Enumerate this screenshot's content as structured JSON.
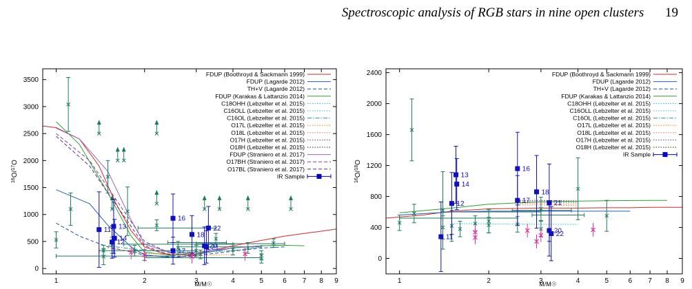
{
  "page_header": {
    "title": "Spectroscopic analysis of RGB stars in nine open clusters",
    "page_number": "19"
  },
  "legend_entries": [
    {
      "label": "FDUP (Boothroyd & Sackmann 1999)",
      "color": "#d62728",
      "dash": "solid"
    },
    {
      "label": "FDUP (Lagarde 2012)",
      "color": "#1f5fbf",
      "dash": "solid"
    },
    {
      "label": "TH+V (Lagarde 2012)",
      "color": "#1f4f9f",
      "dash": "dash"
    },
    {
      "label": "FDUP (Karakas & Lattanzio 2014)",
      "color": "#2ca02c",
      "dash": "solid"
    },
    {
      "label": "C18OHH (Lebzelter et al. 2015)",
      "color": "#17becf",
      "dash": "dot"
    },
    {
      "label": "C16OLL (Lebzelter et al. 2015)",
      "color": "#40b0c0",
      "dash": "dot"
    },
    {
      "label": "C16OL (Lebzelter et al. 2015)",
      "color": "#2a90a0",
      "dash": "dashdot"
    },
    {
      "label": "O17L (Lebzelter et al. 2015)",
      "color": "#ff7f0e",
      "dash": "dot"
    },
    {
      "label": "O18L (Lebzelter et al. 2015)",
      "color": "#e07040",
      "dash": "dot"
    },
    {
      "label": "O17H (Lebzelter et al. 2015)",
      "color": "#555555",
      "dash": "dot"
    },
    {
      "label": "O18H (Lebzelter et al. 2015)",
      "color": "#222222",
      "dash": "dot"
    },
    {
      "label": "FDUP (Straniero et al. 2017)",
      "color": "#9467bd",
      "dash": "solid"
    },
    {
      "label": "O17BH (Straniero et al. 2017)",
      "color": "#7a3fa0",
      "dash": "dash"
    },
    {
      "label": "O17BL (Straniero et al. 2017)",
      "color": "#5a2f80",
      "dash": "dash"
    },
    {
      "label": "IR Sample",
      "color": "#0000cc",
      "dash": "marker"
    }
  ],
  "chart_data": [
    {
      "type": "scatter",
      "id": "left",
      "ylabel": "16O/17O",
      "xlabel": "M/M☉",
      "xlog": true,
      "xlim": [
        0.9,
        9
      ],
      "ylim": [
        -100,
        3700
      ],
      "xticks": [
        1,
        2,
        3,
        4,
        5,
        6,
        7,
        8,
        9
      ],
      "yticks": [
        0,
        500,
        1000,
        1500,
        2000,
        2500,
        3000,
        3500
      ],
      "legend_rows": 15,
      "curves": [
        {
          "legend": 0,
          "points": [
            [
              0.9,
              2640
            ],
            [
              1.0,
              2610
            ],
            [
              1.2,
              2400
            ],
            [
              1.4,
              1900
            ],
            [
              1.6,
              1200
            ],
            [
              1.8,
              700
            ],
            [
              2.0,
              400
            ],
            [
              2.3,
              280
            ],
            [
              2.6,
              250
            ],
            [
              3.0,
              270
            ],
            [
              3.5,
              350
            ],
            [
              4.0,
              420
            ],
            [
              5.0,
              520
            ],
            [
              6.0,
              600
            ],
            [
              7.0,
              650
            ],
            [
              8.0,
              690
            ],
            [
              9.0,
              730
            ]
          ]
        },
        {
          "legend": 1,
          "points": [
            [
              1.0,
              1460
            ],
            [
              1.3,
              1200
            ],
            [
              1.5,
              800
            ],
            [
              1.8,
              400
            ],
            [
              2.0,
              250
            ],
            [
              2.5,
              200
            ],
            [
              3.0,
              260
            ],
            [
              4.0,
              380
            ],
            [
              5.0,
              420
            ],
            [
              6.0,
              430
            ]
          ]
        },
        {
          "legend": 2,
          "points": [
            [
              1.0,
              840
            ],
            [
              1.2,
              600
            ],
            [
              1.5,
              400
            ],
            [
              2.0,
              250
            ],
            [
              2.5,
              210
            ],
            [
              3.0,
              240
            ],
            [
              4.0,
              320
            ],
            [
              5.0,
              380
            ],
            [
              6.0,
              400
            ]
          ]
        },
        {
          "legend": 3,
          "points": [
            [
              1.0,
              2720
            ],
            [
              1.2,
              2300
            ],
            [
              1.5,
              1400
            ],
            [
              1.8,
              600
            ],
            [
              2.0,
              300
            ],
            [
              2.5,
              240
            ],
            [
              3.0,
              300
            ],
            [
              4.0,
              380
            ],
            [
              5.0,
              420
            ],
            [
              6.0,
              430
            ],
            [
              7.0,
              420
            ]
          ]
        },
        {
          "legend": 6,
          "points": [
            [
              1.5,
              420
            ],
            [
              2.0,
              330
            ],
            [
              3.0,
              300
            ],
            [
              4.0,
              330
            ],
            [
              5.0,
              400
            ]
          ]
        },
        {
          "legend": 7,
          "points": [
            [
              1.5,
              380
            ],
            [
              2.0,
              280
            ],
            [
              3.0,
              240
            ],
            [
              4.0,
              260
            ]
          ]
        },
        {
          "legend": 11,
          "points": [
            [
              1.0,
              2600
            ],
            [
              1.2,
              2400
            ],
            [
              1.5,
              1800
            ],
            [
              1.8,
              900
            ],
            [
              2.0,
              450
            ],
            [
              2.5,
              280
            ],
            [
              3.0,
              300
            ],
            [
              4.0,
              380
            ],
            [
              5.0,
              420
            ]
          ]
        },
        {
          "legend": 12,
          "points": [
            [
              1.0,
              2500
            ],
            [
              1.3,
              2000
            ],
            [
              1.5,
              1500
            ],
            [
              2.0,
              500
            ],
            [
              2.5,
              260
            ],
            [
              3.0,
              250
            ]
          ]
        },
        {
          "legend": 13,
          "points": [
            [
              1.0,
              2450
            ],
            [
              1.3,
              1900
            ],
            [
              1.5,
              1400
            ],
            [
              2.0,
              420
            ],
            [
              2.5,
              230
            ],
            [
              3.0,
              220
            ]
          ]
        }
      ],
      "ir_sample": [
        {
          "label": "11",
          "x": 1.4,
          "y": 720,
          "err": 700
        },
        {
          "label": "12",
          "x": 1.55,
          "y": 490,
          "err": 300
        },
        {
          "label": "13",
          "x": 1.57,
          "y": 780,
          "err": 500
        },
        {
          "label": "14",
          "x": 1.58,
          "y": 560,
          "err": 350
        },
        {
          "label": "16",
          "x": 2.5,
          "y": 930,
          "err": 450
        },
        {
          "label": "17",
          "x": 2.5,
          "y": 330,
          "err": 250
        },
        {
          "label": "18",
          "x": 2.9,
          "y": 630,
          "err": 350
        },
        {
          "label": "20",
          "x": 3.2,
          "y": 420,
          "err": 350
        },
        {
          "label": "21",
          "x": 3.25,
          "y": 400,
          "err": 300
        },
        {
          "label": "22",
          "x": 3.3,
          "y": 750,
          "err": 400
        }
      ],
      "green_points": [
        {
          "x": 1.0,
          "y": 530,
          "err": 150
        },
        {
          "x": 1.1,
          "y": 3040,
          "err": 500
        },
        {
          "x": 1.12,
          "y": 1100,
          "err": 300
        },
        {
          "x": 1.45,
          "y": 220,
          "err": 150
        },
        {
          "x": 1.45,
          "y": 330,
          "err": 100
        },
        {
          "x": 1.5,
          "y": 1700,
          "err": 300
        },
        {
          "x": 1.55,
          "y": 430,
          "err": 150
        },
        {
          "x": 1.75,
          "y": 1060,
          "err": 450
        },
        {
          "x": 1.85,
          "y": 330,
          "err": 100
        },
        {
          "x": 2.0,
          "y": 250,
          "err": 100
        },
        {
          "x": 2.2,
          "y": 800,
          "err": 100
        },
        {
          "x": 2.6,
          "y": 380,
          "err": 120
        },
        {
          "x": 3.0,
          "y": 330,
          "err": 100
        },
        {
          "x": 3.1,
          "y": 260,
          "err": 80
        },
        {
          "x": 3.5,
          "y": 550,
          "err": 100
        },
        {
          "x": 4.0,
          "y": 350,
          "err": 100
        },
        {
          "x": 4.5,
          "y": 380,
          "err": 100
        },
        {
          "x": 5.0,
          "y": 250,
          "err": 80
        },
        {
          "x": 5.0,
          "y": 180,
          "err": 80
        },
        {
          "x": 5.5,
          "y": 470,
          "err": 80
        }
      ],
      "arrows": [
        [
          1.4,
          2500
        ],
        [
          1.62,
          2000
        ],
        [
          1.7,
          2000
        ],
        [
          2.2,
          1200
        ],
        [
          2.2,
          2500
        ],
        [
          3.2,
          1100
        ],
        [
          3.6,
          1100
        ],
        [
          4.5,
          1100
        ],
        [
          6.3,
          1100
        ],
        [
          1.55,
          1100
        ]
      ],
      "magenta_points": [
        {
          "x": 1.8,
          "y": 300
        },
        {
          "x": 2.0,
          "y": 250
        },
        {
          "x": 2.9,
          "y": 220
        },
        {
          "x": 4.4,
          "y": 270
        }
      ],
      "hbars": [
        {
          "x1": 1.0,
          "x2": 2.5,
          "y": 230
        },
        {
          "x1": 1.4,
          "x2": 3.0,
          "y": 330
        },
        {
          "x1": 1.7,
          "x2": 4.0,
          "y": 450
        },
        {
          "x1": 2.4,
          "x2": 3.8,
          "y": 480
        },
        {
          "x1": 2.6,
          "x2": 5.0,
          "y": 400
        },
        {
          "x1": 1.9,
          "x2": 3.5,
          "y": 750
        },
        {
          "x1": 2.0,
          "x2": 5.0,
          "y": 200
        },
        {
          "x1": 3.0,
          "x2": 6.0,
          "y": 460
        }
      ]
    },
    {
      "type": "scatter",
      "id": "right",
      "ylabel": "16O/18O",
      "xlabel": "M/M☉",
      "xlog": true,
      "xlim": [
        0.9,
        9
      ],
      "ylim": [
        -200,
        2450
      ],
      "xticks": [
        1,
        2,
        3,
        4,
        5,
        6,
        7,
        8,
        9
      ],
      "yticks": [
        0,
        400,
        800,
        1200,
        1600,
        2000,
        2400
      ],
      "legend_rows": 12,
      "curves": [
        {
          "legend": 0,
          "points": [
            [
              0.9,
              520
            ],
            [
              1.2,
              560
            ],
            [
              1.5,
              610
            ],
            [
              2.0,
              640
            ],
            [
              3.0,
              650
            ],
            [
              4.0,
              650
            ],
            [
              5.0,
              655
            ],
            [
              6.0,
              655
            ],
            [
              7.0,
              660
            ],
            [
              9.0,
              660
            ]
          ]
        },
        {
          "legend": 1,
          "points": [
            [
              1.0,
              560
            ],
            [
              1.5,
              600
            ],
            [
              2.0,
              610
            ],
            [
              3.0,
              610
            ],
            [
              4.0,
              610
            ],
            [
              5.0,
              610
            ],
            [
              6.0,
              610
            ]
          ]
        },
        {
          "legend": 3,
          "points": [
            [
              1.0,
              590
            ],
            [
              1.5,
              650
            ],
            [
              2.0,
              700
            ],
            [
              3.0,
              730
            ],
            [
              4.0,
              740
            ],
            [
              5.0,
              745
            ],
            [
              7.0,
              750
            ],
            [
              8.0,
              750
            ]
          ]
        },
        {
          "legend": 4,
          "points": [
            [
              1.5,
              450
            ],
            [
              2.0,
              445
            ],
            [
              3.0,
              440
            ],
            [
              4.0,
              440
            ]
          ]
        },
        {
          "legend": 7,
          "points": [
            [
              2.5,
              710
            ],
            [
              3.0,
              710
            ],
            [
              4.0,
              700
            ]
          ]
        },
        {
          "legend": 8,
          "points": [
            [
              2.5,
              690
            ],
            [
              3.0,
              690
            ],
            [
              4.0,
              680
            ]
          ]
        },
        {
          "legend": 9,
          "points": [
            [
              2.5,
              730
            ],
            [
              3.0,
              730
            ],
            [
              4.0,
              720
            ]
          ]
        },
        {
          "legend": 10,
          "points": [
            [
              2.5,
              750
            ],
            [
              3.0,
              750
            ],
            [
              4.0,
              740
            ]
          ]
        }
      ],
      "ir_sample": [
        {
          "label": "11",
          "x": 1.38,
          "y": 280,
          "err": 450
        },
        {
          "label": "12",
          "x": 1.5,
          "y": 710,
          "err": 400
        },
        {
          "label": "13",
          "x": 1.55,
          "y": 1080,
          "err": 370
        },
        {
          "label": "14",
          "x": 1.56,
          "y": 960,
          "err": 330
        },
        {
          "label": "16",
          "x": 2.5,
          "y": 1160,
          "err": 470
        },
        {
          "label": "17",
          "x": 2.5,
          "y": 750,
          "err": 320
        },
        {
          "label": "18",
          "x": 2.9,
          "y": 860,
          "err": 470
        },
        {
          "label": "20",
          "x": 3.2,
          "y": 360,
          "err": 330
        },
        {
          "label": "21",
          "x": 3.2,
          "y": 720,
          "err": 500
        },
        {
          "label": "22",
          "x": 3.25,
          "y": 320,
          "err": 350
        }
      ],
      "green_points": [
        {
          "x": 1.0,
          "y": 460,
          "err": 100
        },
        {
          "x": 1.1,
          "y": 1660,
          "err": 400
        },
        {
          "x": 1.12,
          "y": 580,
          "err": 120
        },
        {
          "x": 1.4,
          "y": 620,
          "err": 500
        },
        {
          "x": 1.4,
          "y": 400,
          "err": 150
        },
        {
          "x": 1.5,
          "y": 420,
          "err": 200
        },
        {
          "x": 1.6,
          "y": 380,
          "err": 100
        },
        {
          "x": 1.8,
          "y": 450,
          "err": 100
        },
        {
          "x": 2.0,
          "y": 480,
          "err": 150
        },
        {
          "x": 2.0,
          "y": 430,
          "err": 100
        },
        {
          "x": 2.5,
          "y": 440,
          "err": 100
        },
        {
          "x": 3.0,
          "y": 380,
          "err": 100
        },
        {
          "x": 3.0,
          "y": 640,
          "err": 150
        },
        {
          "x": 4.0,
          "y": 900,
          "err": 400
        },
        {
          "x": 5.0,
          "y": 550,
          "err": 200
        }
      ],
      "arrows": [],
      "magenta_points": [
        {
          "x": 1.8,
          "y": 340
        },
        {
          "x": 1.8,
          "y": 270
        },
        {
          "x": 2.7,
          "y": 360
        },
        {
          "x": 2.9,
          "y": 220
        },
        {
          "x": 3.0,
          "y": 300
        },
        {
          "x": 4.5,
          "y": 370
        }
      ],
      "hbars": [
        {
          "x1": 1.0,
          "x2": 2.5,
          "y": 520
        },
        {
          "x1": 1.4,
          "x2": 3.0,
          "y": 600
        },
        {
          "x1": 2.4,
          "x2": 3.8,
          "y": 620
        },
        {
          "x1": 2.8,
          "x2": 4.2,
          "y": 560
        }
      ]
    }
  ]
}
